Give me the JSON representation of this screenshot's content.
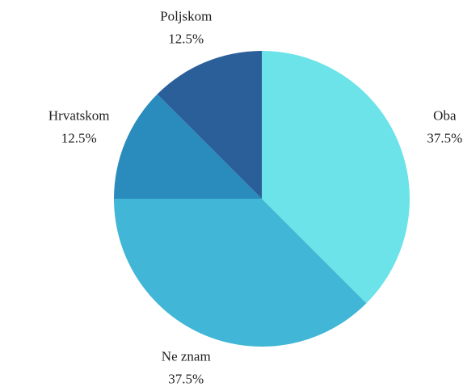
{
  "chart_data": {
    "type": "pie",
    "categories": [
      "Oba",
      "Ne znam",
      "Hrvatskom",
      "Poljskom"
    ],
    "values": [
      37.5,
      37.5,
      12.5,
      12.5
    ],
    "value_labels": [
      "37.5%",
      "37.5%",
      "12.5%",
      "12.5%"
    ],
    "colors": [
      "#6be3e9",
      "#41b6d6",
      "#2a8bbd",
      "#2a5f99"
    ]
  }
}
